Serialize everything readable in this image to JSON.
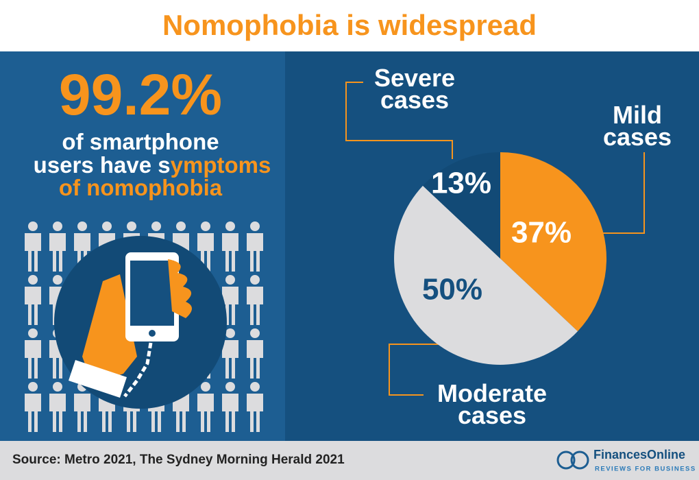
{
  "title": "Nomophobia is widespread",
  "stat": "99.2%",
  "description_parts": [
    "of smartphone",
    "users have s",
    "ymptoms",
    "of nomophobia"
  ],
  "source": "Source: Metro 2021, The Sydney Morning Herald 2021",
  "logo": {
    "name": "FinancesOnline",
    "tagline": "REVIEWS FOR BUSINESS"
  },
  "chart_data": {
    "type": "pie",
    "categories": [
      "Mild cases",
      "Moderate cases",
      "Severe cases"
    ],
    "values": [
      37,
      50,
      13
    ],
    "value_labels": [
      "37%",
      "50%",
      "13%"
    ],
    "colors": [
      "#f7941d",
      "#dcdcde",
      "#124a76"
    ]
  }
}
